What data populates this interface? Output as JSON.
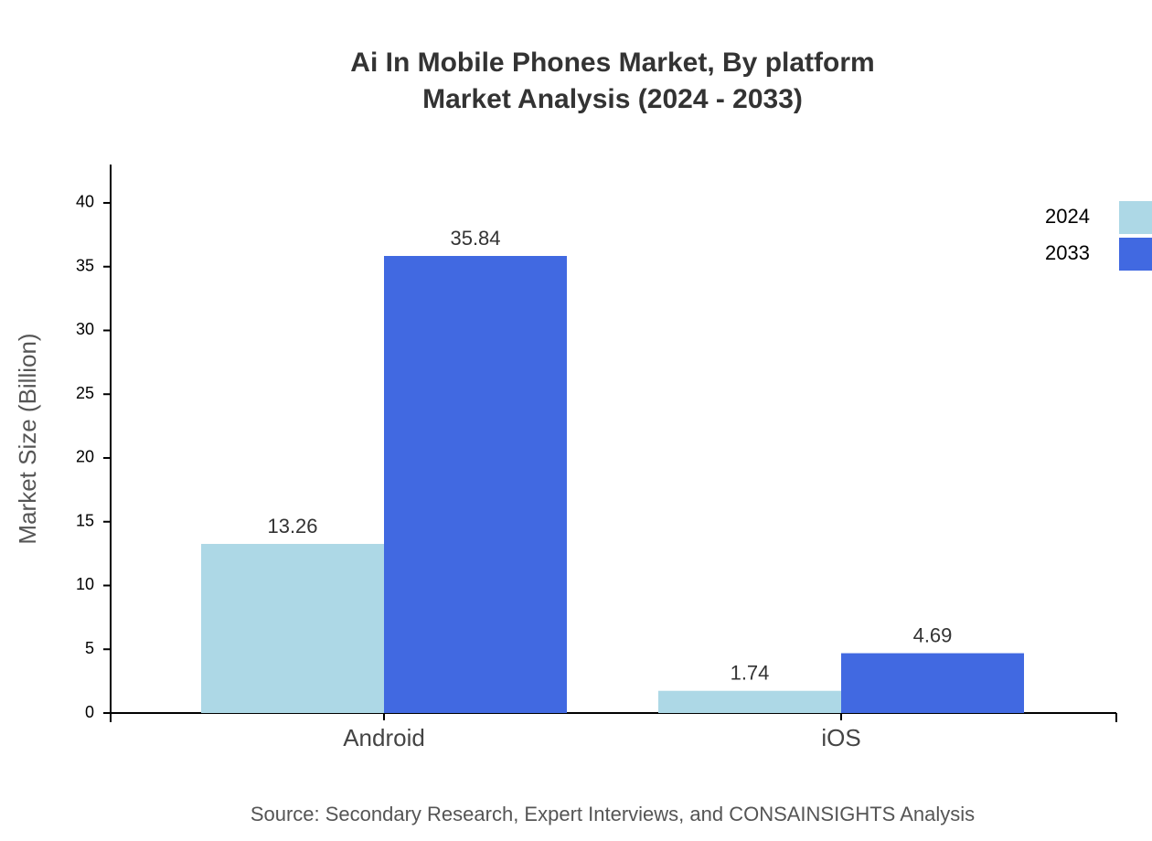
{
  "chart_data": {
    "type": "bar",
    "title": "Ai In Mobile Phones Market, By platform",
    "subtitle": "Market Analysis (2024 - 2033)",
    "y_label": "Market Size (Billion)",
    "source": "Source: Secondary Research, Expert Interviews, and CONSAINSIGHTS Analysis",
    "categories": [
      "Android",
      "iOS"
    ],
    "series": [
      {
        "name": "2024",
        "color": "#add8e6",
        "values": [
          13.26,
          1.74
        ]
      },
      {
        "name": "2033",
        "color": "#4169e1",
        "values": [
          35.84,
          4.69
        ]
      }
    ],
    "ylim": [
      0,
      43.008
    ],
    "yticks": [
      0,
      5,
      10,
      15,
      20,
      25,
      30,
      35,
      40
    ],
    "legend": "top-right"
  }
}
